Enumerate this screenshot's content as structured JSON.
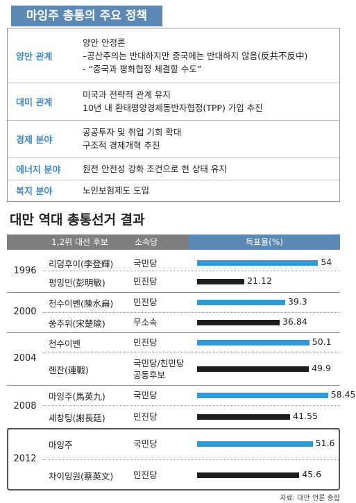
{
  "policy": {
    "title": "마잉주 총통의 주요 정책",
    "rows": [
      {
        "category": "양안 관계",
        "lines": [
          "양안 안정론",
          "–공산주의는 반대하지만 중국에는 반대하지 않음(反共不反中)",
          "- “중국과 평화협정 체결할 수도”"
        ]
      },
      {
        "category": "대미 관계",
        "lines": [
          "미국과 전략적 관계 유지",
          "10년 내 환태평양경제동반자협정(TPP) 가입 추진"
        ]
      },
      {
        "category": "경제 분야",
        "lines": [
          "공공투자 및 취업 기회 확대",
          "구조적 경제개혁 추진"
        ]
      },
      {
        "category": "에너지 분야",
        "lines": [
          "원전 안전성 강화 조건으로 현 상태 유지"
        ]
      },
      {
        "category": "복지 분야",
        "lines": [
          "노인보험제도 도입"
        ]
      }
    ]
  },
  "elections": {
    "title": "대만 역대 총통선거 결과",
    "header": {
      "candidate": "1,2위 대선 후보",
      "party": "소속당",
      "vote": "득표율(%)"
    },
    "colors": {
      "winner": "#2e9ad8",
      "runner_up": "#1e1e1e"
    },
    "source": "자료: 대만 언론 종합"
  },
  "chart_data": {
    "type": "bar",
    "title": "대만 역대 총통선거 결과",
    "ylabel": "득표율(%)",
    "xlim": [
      0,
      70
    ],
    "groups": [
      {
        "year": "1996",
        "candidates": [
          {
            "name": "리덩후이(李登輝)",
            "party": [
              "국민당"
            ],
            "value": 54,
            "label": "54",
            "rank": 1
          },
          {
            "name": "펑밍민(彭明敏)",
            "party": [
              "민진당"
            ],
            "value": 21.12,
            "label": "21.12",
            "rank": 2
          }
        ]
      },
      {
        "year": "2000",
        "candidates": [
          {
            "name": "천수이볜(陳水扁)",
            "party": [
              "민진당"
            ],
            "value": 39.3,
            "label": "39.3",
            "rank": 1
          },
          {
            "name": "쑹추위(宋楚瑜)",
            "party": [
              "무소속"
            ],
            "value": 36.84,
            "label": "36.84",
            "rank": 2
          }
        ]
      },
      {
        "year": "2004",
        "candidates": [
          {
            "name": "천수이볜",
            "party": [
              "민진당"
            ],
            "value": 50.1,
            "label": "50.1",
            "rank": 1
          },
          {
            "name": "롄잔(連戰)",
            "party": [
              "국민당/친민당",
              "공동후보"
            ],
            "value": 49.9,
            "label": "49.9",
            "rank": 2
          }
        ]
      },
      {
        "year": "2008",
        "candidates": [
          {
            "name": "마잉주(馬英九)",
            "party": [
              "국민당"
            ],
            "value": 58.45,
            "label": "58.45",
            "rank": 1
          },
          {
            "name": "셰창팅(謝長廷)",
            "party": [
              "민진당"
            ],
            "value": 41.55,
            "label": "41.55",
            "rank": 2
          }
        ]
      },
      {
        "year": "2012",
        "candidates": [
          {
            "name": "마잉주",
            "party": [
              "국민당"
            ],
            "value": 51.6,
            "label": "51.6",
            "rank": 1
          },
          {
            "name": "차이잉원(蔡英文)",
            "party": [
              "민진당"
            ],
            "value": 45.6,
            "label": "45.6",
            "rank": 2
          }
        ]
      }
    ]
  }
}
